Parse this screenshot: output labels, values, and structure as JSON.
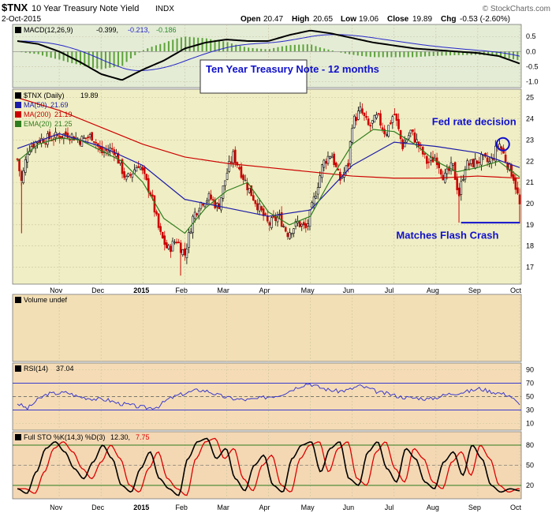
{
  "header": {
    "symbol": "$TNX",
    "name": "10 Year Treasury Note Yield",
    "exchange": "INDX",
    "date": "2-Oct-2015",
    "open_label": "Open",
    "open": "20.47",
    "high_label": "High",
    "high": "20.65",
    "low_label": "Low",
    "low": "19.06",
    "close_label": "Close",
    "close": "19.89",
    "chg_label": "Chg",
    "chg": "-0.53 (-2.60%)",
    "copyright": "© StockCharts.com"
  },
  "colors": {
    "price_bg": "#f0eec4",
    "macd_bg": "#e4ecd6",
    "volume_bg": "#f3dfb5",
    "rsi_bg": "#f5dcb6",
    "sto_bg": "#f4d8b4",
    "up": "#000000",
    "down": "#cc0000",
    "ma50": "#1c1caa",
    "ma200": "#cc0000",
    "ema20": "#2e7d1e",
    "rsi": "#3a3acd",
    "sto_k": "#000000",
    "sto_d": "#dd0000",
    "annotation": "#1010cc"
  },
  "chart_data": [
    {
      "panel": "macd",
      "type": "line",
      "legend": {
        "label": "MACD(12,26,9)",
        "v1": "-0.399,",
        "v2": "-0.213,",
        "v3": "-0.186"
      },
      "ylim": [
        -1.2,
        0.9
      ],
      "y_ticks": [
        0.5,
        0.0,
        -0.5,
        -1.0
      ],
      "y_tick_labels": [
        "0.5",
        "0.0",
        "-0.5",
        "-1.0"
      ],
      "months_x": [
        0,
        1,
        2,
        3,
        4,
        5,
        6,
        7,
        8,
        9,
        10,
        11,
        12
      ],
      "macd": [
        0.35,
        0.25,
        0.0,
        -0.35,
        -0.75,
        -0.95,
        -0.6,
        -0.3,
        0.1,
        0.3,
        0.4,
        0.35,
        0.35,
        0.55,
        0.7,
        0.6,
        0.45,
        0.3,
        0.2,
        0.1,
        0.05,
        0.0,
        -0.05,
        -0.15,
        -0.4
      ]
    },
    {
      "panel": "price",
      "type": "candlestick",
      "title": "Ten Year Treasury Note - 12 months",
      "legend": [
        {
          "label": "$TNX (Daily)",
          "value": "19.89"
        },
        {
          "label": "MA(50)",
          "value": "21.69"
        },
        {
          "label": "MA(200)",
          "value": "21.19"
        },
        {
          "label": "EMA(20)",
          "value": "21.25"
        }
      ],
      "ylim": [
        16.2,
        25.4
      ],
      "y_ticks": [
        17,
        18,
        19,
        20,
        21,
        22,
        23,
        24,
        25
      ],
      "y_tick_labels": [
        "17",
        "18",
        "19",
        "20",
        "21",
        "22",
        "23",
        "24",
        "25"
      ],
      "x_labels": [
        "Nov",
        "Dec",
        "2015",
        "Feb",
        "Mar",
        "Apr",
        "May",
        "Jun",
        "Jul",
        "Aug",
        "Sep",
        "Oct"
      ],
      "x_label_months": [
        1,
        2,
        3,
        4,
        5,
        6,
        7,
        8,
        9,
        10,
        11,
        12
      ],
      "close_points": [
        [
          0.0,
          22.1
        ],
        [
          0.1,
          21.0
        ],
        [
          0.25,
          22.6
        ],
        [
          0.5,
          23.0
        ],
        [
          0.8,
          23.1
        ],
        [
          1.2,
          23.3
        ],
        [
          1.5,
          23.0
        ],
        [
          1.8,
          23.2
        ],
        [
          2.0,
          22.4
        ],
        [
          2.3,
          22.6
        ],
        [
          2.6,
          21.1
        ],
        [
          2.9,
          21.9
        ],
        [
          3.2,
          20.4
        ],
        [
          3.4,
          18.6
        ],
        [
          3.6,
          17.8
        ],
        [
          3.8,
          18.3
        ],
        [
          4.0,
          17.6
        ],
        [
          4.2,
          19.4
        ],
        [
          4.4,
          20.1
        ],
        [
          4.6,
          20.3
        ],
        [
          4.8,
          19.8
        ],
        [
          5.0,
          21.4
        ],
        [
          5.15,
          22.3
        ],
        [
          5.3,
          21.7
        ],
        [
          5.5,
          20.8
        ],
        [
          5.8,
          19.7
        ],
        [
          6.0,
          19.0
        ],
        [
          6.25,
          19.4
        ],
        [
          6.45,
          18.6
        ],
        [
          6.7,
          19.1
        ],
        [
          6.9,
          18.8
        ],
        [
          7.1,
          20.3
        ],
        [
          7.3,
          21.9
        ],
        [
          7.5,
          22.4
        ],
        [
          7.7,
          21.1
        ],
        [
          7.9,
          21.8
        ],
        [
          8.0,
          23.8
        ],
        [
          8.2,
          24.4
        ],
        [
          8.4,
          23.6
        ],
        [
          8.6,
          24.1
        ],
        [
          8.8,
          23.3
        ],
        [
          9.0,
          24.3
        ],
        [
          9.2,
          22.7
        ],
        [
          9.4,
          23.4
        ],
        [
          9.6,
          22.7
        ],
        [
          9.8,
          21.9
        ],
        [
          10.0,
          22.2
        ],
        [
          10.2,
          21.2
        ],
        [
          10.4,
          21.8
        ],
        [
          10.55,
          20.4
        ],
        [
          10.7,
          21.8
        ],
        [
          10.9,
          21.9
        ],
        [
          11.1,
          22.1
        ],
        [
          11.3,
          21.9
        ],
        [
          11.5,
          22.9
        ],
        [
          11.7,
          21.9
        ],
        [
          11.85,
          21.3
        ],
        [
          11.95,
          20.4
        ],
        [
          12.0,
          19.9
        ]
      ],
      "ma50": [
        [
          0,
          22.6
        ],
        [
          1,
          23.3
        ],
        [
          2,
          22.7
        ],
        [
          3,
          21.8
        ],
        [
          4,
          20.2
        ],
        [
          5,
          19.8
        ],
        [
          6,
          19.4
        ],
        [
          7,
          19.7
        ],
        [
          8,
          21.8
        ],
        [
          9,
          22.9
        ],
        [
          10,
          22.7
        ],
        [
          11,
          22.4
        ],
        [
          12,
          21.7
        ]
      ],
      "ma200": [
        [
          0,
          25.0
        ],
        [
          1,
          24.4
        ],
        [
          2,
          23.6
        ],
        [
          3,
          22.8
        ],
        [
          4,
          22.2
        ],
        [
          5,
          21.9
        ],
        [
          6,
          21.7
        ],
        [
          7,
          21.5
        ],
        [
          8,
          21.3
        ],
        [
          9,
          21.2
        ],
        [
          10,
          21.2
        ],
        [
          11,
          21.3
        ],
        [
          12,
          21.2
        ]
      ],
      "ema20": [
        [
          0,
          22.0
        ],
        [
          0.5,
          22.8
        ],
        [
          1,
          23.1
        ],
        [
          1.5,
          23.0
        ],
        [
          2,
          22.5
        ],
        [
          2.5,
          22.0
        ],
        [
          3,
          21.0
        ],
        [
          3.5,
          19.3
        ],
        [
          4,
          18.6
        ],
        [
          4.5,
          19.8
        ],
        [
          5,
          20.6
        ],
        [
          5.5,
          21.0
        ],
        [
          6,
          19.6
        ],
        [
          6.5,
          19.0
        ],
        [
          7,
          19.4
        ],
        [
          7.5,
          21.2
        ],
        [
          8,
          22.8
        ],
        [
          8.5,
          23.5
        ],
        [
          9,
          23.4
        ],
        [
          9.5,
          22.8
        ],
        [
          10,
          22.0
        ],
        [
          10.5,
          21.5
        ],
        [
          11,
          21.7
        ],
        [
          11.5,
          22.0
        ],
        [
          12,
          21.25
        ]
      ],
      "annotations": [
        {
          "text": "Fed rate decision",
          "x": 11.6,
          "y": 22.8,
          "kind": "circle"
        },
        {
          "text": "Matches Flash Crash",
          "level": 19.1,
          "x_from": 10.6,
          "x_to": 12.0,
          "kind": "hline"
        }
      ]
    },
    {
      "panel": "volume",
      "type": "bar",
      "legend": {
        "label": "Volume undef"
      },
      "values": []
    },
    {
      "panel": "rsi",
      "type": "line",
      "legend": {
        "label": "RSI(14)",
        "value": "37.04"
      },
      "ylim": [
        0,
        100
      ],
      "y_ticks": [
        90,
        70,
        50,
        30,
        10
      ],
      "y_tick_labels": [
        "90",
        "70",
        "50",
        "30",
        "10"
      ],
      "overbought": 70,
      "oversold": 30,
      "mid": 50,
      "values": [
        40,
        32,
        45,
        54,
        55,
        56,
        50,
        48,
        46,
        45,
        40,
        38,
        35,
        33,
        35,
        46,
        52,
        56,
        60,
        58,
        52,
        48,
        46,
        45,
        47,
        50,
        52,
        58,
        65,
        70,
        64,
        60,
        58,
        60,
        66,
        62,
        56,
        54,
        50,
        48,
        48,
        46,
        50,
        54,
        56,
        58,
        62,
        58,
        55,
        52,
        37
      ]
    },
    {
      "panel": "sto",
      "type": "line",
      "legend": {
        "label": "Full STO %K(14,3) %D(3)",
        "k": "12.30,",
        "d": "7.75"
      },
      "ylim": [
        0,
        100
      ],
      "y_ticks": [
        80,
        50,
        20
      ],
      "y_tick_labels": [
        "80",
        "50",
        "20"
      ],
      "overbought": 80,
      "oversold": 20,
      "k": [
        15,
        8,
        40,
        75,
        85,
        70,
        45,
        30,
        55,
        80,
        60,
        20,
        10,
        45,
        70,
        30,
        15,
        5,
        60,
        85,
        90,
        60,
        75,
        30,
        12,
        50,
        65,
        20,
        10,
        60,
        80,
        85,
        40,
        75,
        85,
        30,
        20,
        70,
        85,
        45,
        25,
        75,
        60,
        25,
        15,
        55,
        70,
        35,
        80,
        60,
        20,
        10,
        15,
        12
      ]
    }
  ]
}
